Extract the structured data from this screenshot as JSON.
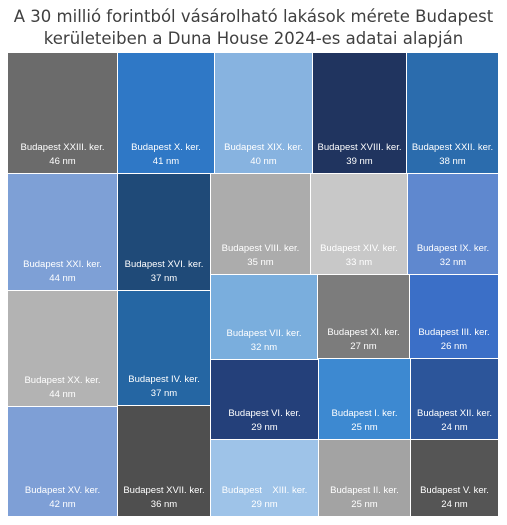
{
  "title_lines": [
    "A 30 millió forintból vásárolható lakások mérete Budapest",
    "kerületeiben a Duna House 2024-es adatai alapján"
  ],
  "chart_data": {
    "type": "treemap",
    "unit": "nm",
    "items": [
      {
        "name": "Budapest XXIII. ker.",
        "value": 46,
        "label": "46 nm",
        "color": "#6b6b6b"
      },
      {
        "name": "Budapest X. ker.",
        "value": 41,
        "label": "41 nm",
        "color": "#2f78c6"
      },
      {
        "name": "Budapest XIX. ker.",
        "value": 40,
        "label": "40 nm",
        "color": "#87b3e0"
      },
      {
        "name": "Budapest XVIII. ker.",
        "value": 39,
        "label": "39 nm",
        "color": "#20345f"
      },
      {
        "name": "Budapest XXII. ker.",
        "value": 38,
        "label": "38 nm",
        "color": "#2b6cad"
      },
      {
        "name": "Budapest XXI. ker.",
        "value": 44,
        "label": "44 nm",
        "color": "#7ea0d6"
      },
      {
        "name": "Budapest XVI. ker.",
        "value": 37,
        "label": "37 nm",
        "color": "#1f4a78"
      },
      {
        "name": "Budapest VIII. ker.",
        "value": 35,
        "label": "35 nm",
        "color": "#acacac"
      },
      {
        "name": "Budapest XIV. ker.",
        "value": 33,
        "label": "33 nm",
        "color": "#c8c8c8"
      },
      {
        "name": "Budapest IX. ker.",
        "value": 32,
        "label": "32 nm",
        "color": "#5f88cf"
      },
      {
        "name": "Budapest XX. ker.",
        "value": 44,
        "label": "44 nm",
        "color": "#b3b3b3"
      },
      {
        "name": "Budapest IV. ker.",
        "value": 37,
        "label": "37 nm",
        "color": "#2566a3"
      },
      {
        "name": "Budapest VII. ker.",
        "value": 32,
        "label": "32 nm",
        "color": "#7aaedd"
      },
      {
        "name": "Budapest XI. ker.",
        "value": 27,
        "label": "27 nm",
        "color": "#7c7c7c"
      },
      {
        "name": "Budapest III. ker.",
        "value": 26,
        "label": "26 nm",
        "color": "#3b6fc7"
      },
      {
        "name": "Budapest VI. ker.",
        "value": 29,
        "label": "29 nm",
        "color": "#24407a"
      },
      {
        "name": "Budapest I. ker.",
        "value": 25,
        "label": "25 nm",
        "color": "#3d89d1"
      },
      {
        "name": "Budapest XII. ker.",
        "value": 24,
        "label": "24 nm",
        "color": "#2c559a"
      },
      {
        "name": "Budapest XV. ker.",
        "value": 42,
        "label": "42 nm",
        "color": "#7e9fd6"
      },
      {
        "name": "Budapest XVII. ker.",
        "value": 36,
        "label": "36 nm",
        "color": "#4f4f4f"
      },
      {
        "name": "Budapest    XIII. ker.",
        "value": 29,
        "label": "29 nm",
        "color": "#9ec3e8"
      },
      {
        "name": "Budapest II. ker.",
        "value": 25,
        "label": "25 nm",
        "color": "#a3a3a3"
      },
      {
        "name": "Budapest V. ker.",
        "value": 24,
        "label": "24 nm",
        "color": "#555555"
      }
    ]
  }
}
